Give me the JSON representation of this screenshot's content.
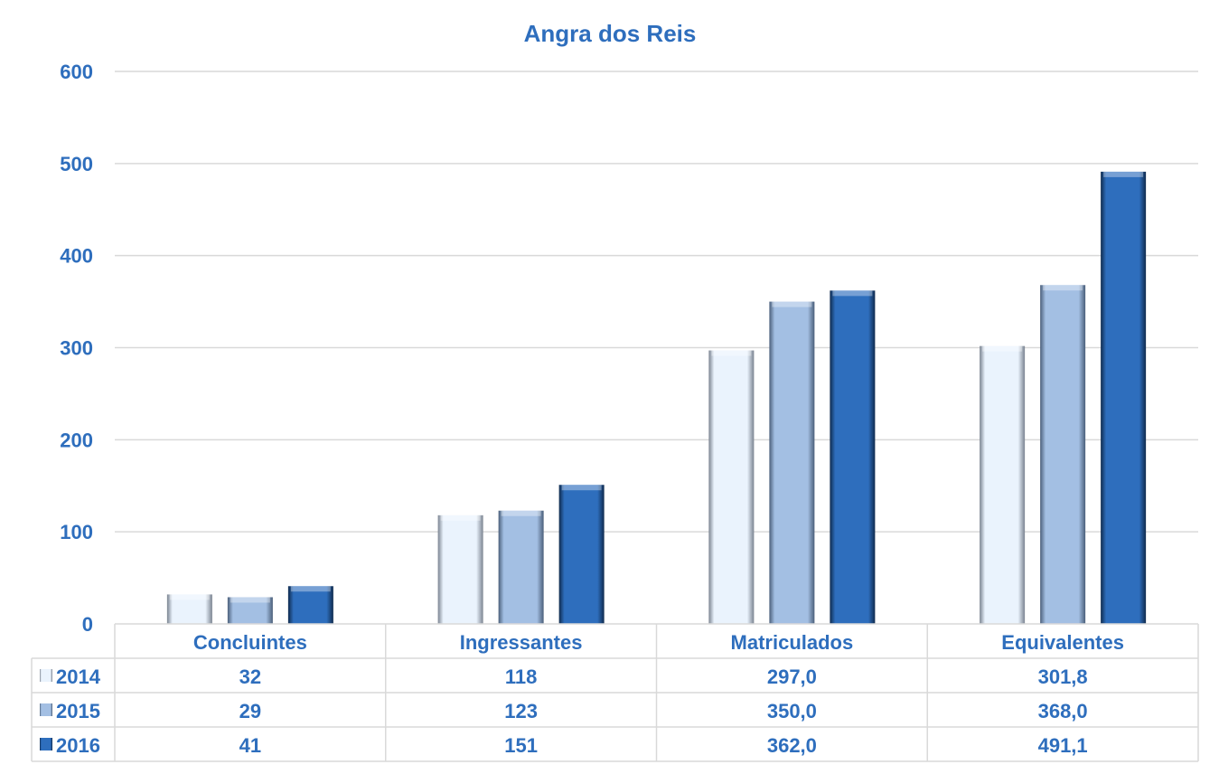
{
  "chart_data": {
    "type": "bar",
    "title": "Angra dos Reis",
    "categories": [
      "Concluintes",
      "Ingressantes",
      "Matriculados",
      "Equivalentes"
    ],
    "series": [
      {
        "name": "2014",
        "values": [
          32,
          118,
          297.0,
          301.8
        ],
        "labels": [
          "32",
          "118",
          "297,0",
          "301,8"
        ],
        "color": "#eaf3fd"
      },
      {
        "name": "2015",
        "values": [
          29,
          123,
          350.0,
          368.0
        ],
        "labels": [
          "29",
          "123",
          "350,0",
          "368,0"
        ],
        "color": "#a3bfe3"
      },
      {
        "name": "2016",
        "values": [
          41,
          151,
          362.0,
          491.1
        ],
        "labels": [
          "41",
          "151",
          "362,0",
          "491,1"
        ],
        "color": "#2e6ebd"
      }
    ],
    "ylim": [
      0,
      600
    ],
    "yticks": [
      0,
      100,
      200,
      300,
      400,
      500,
      600
    ],
    "grid": true,
    "legend": "data-table",
    "data_table": true,
    "colors": {
      "title": "#2e6ebd",
      "axis_text": "#2e6ebd",
      "grid": "#d9d9d9"
    }
  }
}
